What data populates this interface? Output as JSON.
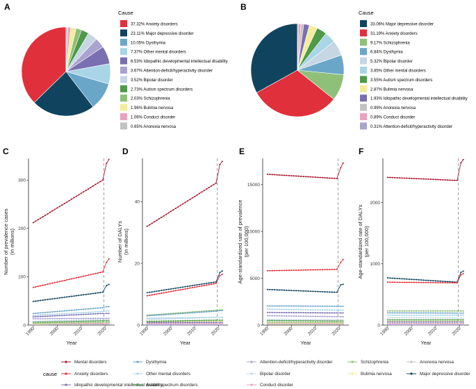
{
  "panels": {
    "A": "A",
    "B": "B",
    "C": "C",
    "D": "D",
    "E": "E",
    "F": "F"
  },
  "colors": {
    "mental": "#a6192e",
    "anxiety": "#e0303b",
    "mdd": "#10445e",
    "idd": "#7a6fb0",
    "dysthymia": "#6aa6c8",
    "other": "#a9d5e6",
    "adhd": "#a9a3cf",
    "bipolar": "#c6d7e3",
    "schizo": "#8fc07a",
    "bulimia": "#f2ed9b",
    "anorexia": "#c2c2c2",
    "autism": "#4e9a4a",
    "conduct": "#eaa2bf"
  },
  "chart_data": [
    {
      "type": "pie",
      "panel": "A",
      "legend_title": "Cause",
      "slices": [
        {
          "label": "37.32% Anxiety disorders",
          "value": 37.32,
          "color": "#e0303b"
        },
        {
          "label": "23.11% Major depressive disorder",
          "value": 23.11,
          "color": "#10445e"
        },
        {
          "label": "10.05% Dysthymia",
          "value": 10.05,
          "color": "#6aa6c8"
        },
        {
          "label": "7.37% Other mental disorders",
          "value": 7.37,
          "color": "#a9d5e6"
        },
        {
          "label": "6.53% Idiopathic developmental intellectual disability",
          "value": 6.53,
          "color": "#7a6fb0"
        },
        {
          "label": "3.67% Attention-deficit/hyperactivity disorder",
          "value": 3.67,
          "color": "#a9a3cf"
        },
        {
          "label": "3.52% Bipolar disorder",
          "value": 3.52,
          "color": "#c6d7e3"
        },
        {
          "label": "2.73% Autism spectrum disorders",
          "value": 2.73,
          "color": "#4e9a4a"
        },
        {
          "label": "2.03% Schizophrenia",
          "value": 2.03,
          "color": "#8fc07a"
        },
        {
          "label": "1.96% Bulimia nervosa",
          "value": 1.96,
          "color": "#f2ed9b"
        },
        {
          "label": "1.06% Conduct disorder",
          "value": 1.06,
          "color": "#eaa2bf"
        },
        {
          "label": "0.65% Anorexia nervosa",
          "value": 0.65,
          "color": "#c2c2c2"
        }
      ]
    },
    {
      "type": "pie",
      "panel": "B",
      "legend_title": "Cause",
      "slices": [
        {
          "label": "33.06% Major depressive disorder",
          "value": 33.06,
          "color": "#10445e"
        },
        {
          "label": "31.19% Anxiety disorders",
          "value": 31.19,
          "color": "#e0303b"
        },
        {
          "label": "9.17% Schizophrenia",
          "value": 9.17,
          "color": "#8fc07a"
        },
        {
          "label": "6.84% Dysthymia",
          "value": 6.84,
          "color": "#6aa6c8"
        },
        {
          "label": "5.32% Bipolar disorder",
          "value": 5.32,
          "color": "#c6d7e3"
        },
        {
          "label": "3.85% Other mental disorders",
          "value": 3.85,
          "color": "#a9d5e6"
        },
        {
          "label": "3.55% Autism spectrum disorders",
          "value": 3.55,
          "color": "#4e9a4a"
        },
        {
          "label": "2.87% Bulimia nervosa",
          "value": 2.87,
          "color": "#f2ed9b"
        },
        {
          "label": "1.93% Idiopathic developmental intellectual disability",
          "value": 1.93,
          "color": "#7a6fb0"
        },
        {
          "label": "0.99% Anorexia nervosa",
          "value": 0.99,
          "color": "#c2c2c2"
        },
        {
          "label": "0.89% Conduct disorder",
          "value": 0.89,
          "color": "#eaa2bf"
        },
        {
          "label": "0.31% Attention-deficit/hyperactivity disorder",
          "value": 0.31,
          "color": "#a9a3cf"
        }
      ]
    },
    {
      "type": "line",
      "panel": "C",
      "ylabel": [
        "Number of prevalence cases",
        "(in millions)"
      ],
      "xlabel": "Year",
      "ylim": [
        0,
        345
      ],
      "yticks": [
        0,
        100,
        200,
        300
      ],
      "ytick_labels": [
        "0",
        "100",
        "200",
        "300"
      ],
      "series": {
        "mental": [
          212,
          300,
          310,
          335,
          343
        ],
        "anxiety": [
          78,
          110,
          114,
          130,
          137
        ],
        "mdd": [
          49,
          68,
          70,
          82,
          84
        ],
        "dysthymia": [
          24,
          36,
          37,
          38,
          38
        ],
        "other": [
          20,
          28,
          28,
          29,
          29
        ],
        "idd": [
          17,
          24,
          24,
          24,
          24
        ],
        "adhd": [
          13,
          14,
          14,
          14,
          14
        ],
        "bipolar": [
          8,
          11,
          11,
          11,
          11
        ],
        "autism": [
          6,
          9,
          9,
          9,
          9
        ],
        "schizo": [
          4,
          6,
          6,
          6,
          6
        ],
        "bulimia": [
          3,
          6,
          6,
          6,
          6
        ],
        "conduct": [
          3,
          4,
          4,
          4,
          4
        ],
        "anorexia": [
          1,
          2,
          2,
          2,
          2
        ]
      }
    },
    {
      "type": "line",
      "panel": "D",
      "ylabel": [
        "Number of DALYs",
        "(in millions)"
      ],
      "xlabel": "Year",
      "ylim": [
        0,
        54
      ],
      "yticks": [
        0,
        20,
        40
      ],
      "ytick_labels": [
        "0",
        "20",
        "40"
      ],
      "series": {
        "mental": [
          32,
          46,
          47,
          52,
          53
        ],
        "anxiety": [
          9.5,
          13.5,
          14,
          16,
          16.5
        ],
        "mdd": [
          10.5,
          14,
          14.5,
          17,
          17.5
        ],
        "dysthymia": [
          3,
          4.5,
          4.5,
          4.7,
          4.7
        ],
        "schizo": [
          3.2,
          4.8,
          4.8,
          4.9,
          4.9
        ],
        "other": [
          2.2,
          2.5,
          2.5,
          2.5,
          2.5
        ],
        "bipolar": [
          1.8,
          2.5,
          2.5,
          2.5,
          2.5
        ],
        "autism": [
          1.2,
          1.6,
          1.6,
          1.6,
          1.6
        ],
        "bulimia": [
          0.9,
          1.3,
          1.3,
          1.3,
          1.3
        ],
        "idd": [
          0.8,
          0.9,
          0.9,
          0.9,
          0.9
        ],
        "anorexia": [
          0.4,
          0.5,
          0.5,
          0.5,
          0.5
        ],
        "conduct": [
          0.4,
          0.4,
          0.4,
          0.4,
          0.4
        ],
        "adhd": [
          0.1,
          0.1,
          0.1,
          0.1,
          0.1
        ]
      }
    },
    {
      "type": "line",
      "panel": "E",
      "ylabel": [
        "Age-standardized rate of prevalence",
        "(per 100,000)"
      ],
      "xlabel": "Year",
      "ylim": [
        0,
        17800
      ],
      "yticks": [
        0,
        5000,
        10000,
        15000
      ],
      "ytick_labels": [
        "0",
        "5000",
        "10000",
        "15000"
      ],
      "series": {
        "mental": [
          16100,
          15650,
          15700,
          16800,
          17300
        ],
        "anxiety": [
          5800,
          5950,
          6000,
          6700,
          7000
        ],
        "mdd": [
          3800,
          3500,
          3550,
          4300,
          4350
        ],
        "dysthymia": [
          2050,
          2000,
          2000,
          2000,
          2000
        ],
        "other": [
          1700,
          1600,
          1600,
          1600,
          1600
        ],
        "idd": [
          1350,
          1300,
          1300,
          1300,
          1300
        ],
        "adhd": [
          1000,
          900,
          900,
          900,
          900
        ],
        "bipolar": [
          600,
          550,
          550,
          550,
          550
        ],
        "autism": [
          500,
          450,
          450,
          450,
          450
        ],
        "schizo": [
          320,
          300,
          300,
          300,
          300
        ],
        "bulimia": [
          250,
          240,
          240,
          240,
          240
        ],
        "conduct": [
          200,
          180,
          180,
          180,
          180
        ],
        "anorexia": [
          100,
          90,
          90,
          90,
          90
        ]
      }
    },
    {
      "type": "line",
      "panel": "F",
      "ylabel": [
        "Age-standardized rate of DALYs",
        "(per 100,000)"
      ],
      "xlabel": "Year",
      "ylim": [
        0,
        2720
      ],
      "yticks": [
        0,
        1000,
        2000
      ],
      "ytick_labels": [
        "0",
        "1000",
        "2000"
      ],
      "series": {
        "mental": [
          2410,
          2360,
          2380,
          2650,
          2700
        ],
        "mdd": [
          770,
          700,
          710,
          860,
          880
        ],
        "anxiety": [
          700,
          690,
          700,
          820,
          840
        ],
        "schizo": [
          230,
          230,
          230,
          230,
          230
        ],
        "dysthymia": [
          200,
          195,
          195,
          195,
          195
        ],
        "other": [
          160,
          160,
          160,
          160,
          160
        ],
        "bipolar": [
          120,
          115,
          115,
          115,
          115
        ],
        "autism": [
          85,
          85,
          85,
          85,
          85
        ],
        "bulimia": [
          60,
          60,
          60,
          60,
          60
        ],
        "idd": [
          50,
          50,
          50,
          50,
          50
        ],
        "anorexia": [
          25,
          25,
          25,
          25,
          25
        ],
        "conduct": [
          20,
          20,
          20,
          20,
          20
        ],
        "adhd": [
          5,
          5,
          5,
          5,
          5
        ]
      }
    }
  ],
  "year_axis": {
    "ticks": [
      1990,
      2000,
      2010,
      2020
    ],
    "tick_labels": [
      "1990",
      "2000",
      "2010",
      "2020"
    ],
    "range": [
      1988,
      2024
    ],
    "marker_year": 2019
  },
  "bottom_legend": {
    "title": "cause",
    "items": [
      {
        "key": "mental",
        "label": "Mental disorders"
      },
      {
        "key": "dysthymia",
        "label": "Dysthymia"
      },
      {
        "key": "adhd",
        "label": "Attention-deficit/hyperactivity disorder"
      },
      {
        "key": "schizo",
        "label": "Schizophrenia"
      },
      {
        "key": "anorexia",
        "label": "Anorexia nervosa"
      },
      {
        "key": "anxiety",
        "label": "Anxiety disorders"
      },
      {
        "key": "other",
        "label": "Other mental disorders"
      },
      {
        "key": "bipolar",
        "label": "Bipolar disorder"
      },
      {
        "key": "bulimia",
        "label": "Bulimia nervosa"
      },
      {
        "key": "mdd",
        "label": "Major depressive disorder"
      },
      {
        "key": "idd",
        "label": "Idiopathic developmental intellectual disability"
      },
      {
        "key": "autism",
        "label": "Autism spectrum disorders"
      },
      {
        "key": "conduct",
        "label": "Conduct disorder"
      }
    ]
  }
}
